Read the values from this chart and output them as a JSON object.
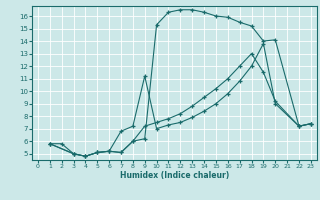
{
  "xlabel": "Humidex (Indice chaleur)",
  "bg_color": "#cce8e8",
  "grid_color": "#ffffff",
  "line_color": "#1a6b6b",
  "xlim": [
    -0.5,
    23.5
  ],
  "ylim": [
    4.5,
    16.8
  ],
  "xticks": [
    0,
    1,
    2,
    3,
    4,
    5,
    6,
    7,
    8,
    9,
    10,
    11,
    12,
    13,
    14,
    15,
    16,
    17,
    18,
    19,
    20,
    21,
    22,
    23
  ],
  "yticks": [
    5,
    6,
    7,
    8,
    9,
    10,
    11,
    12,
    13,
    14,
    15,
    16
  ],
  "line1_x": [
    1,
    2,
    3,
    4,
    5,
    6,
    7,
    8,
    9,
    10,
    11,
    12,
    13,
    14,
    15,
    16,
    17,
    18,
    19,
    20,
    22,
    23
  ],
  "line1_y": [
    5.8,
    5.8,
    5.0,
    4.8,
    5.1,
    5.2,
    5.1,
    6.0,
    6.2,
    15.3,
    16.3,
    16.5,
    16.5,
    16.3,
    16.0,
    15.9,
    15.5,
    15.2,
    14.0,
    14.1,
    7.2,
    7.4
  ],
  "line2_x": [
    1,
    3,
    4,
    5,
    6,
    7,
    8,
    9,
    10,
    11,
    12,
    13,
    14,
    15,
    16,
    17,
    18,
    19,
    20,
    22,
    23
  ],
  "line2_y": [
    5.8,
    5.0,
    4.8,
    5.1,
    5.2,
    5.1,
    6.0,
    7.2,
    7.5,
    7.8,
    8.2,
    8.8,
    9.5,
    10.2,
    11.0,
    12.0,
    13.0,
    11.5,
    9.2,
    7.2,
    7.4
  ],
  "line3_x": [
    1,
    3,
    4,
    5,
    6,
    7,
    8,
    9,
    10,
    11,
    12,
    13,
    14,
    15,
    16,
    17,
    18,
    19,
    20,
    22,
    23
  ],
  "line3_y": [
    5.8,
    5.0,
    4.8,
    5.1,
    5.2,
    6.8,
    7.2,
    11.2,
    7.0,
    7.3,
    7.5,
    7.9,
    8.4,
    9.0,
    9.8,
    10.8,
    12.0,
    13.8,
    9.0,
    7.2,
    7.4
  ]
}
